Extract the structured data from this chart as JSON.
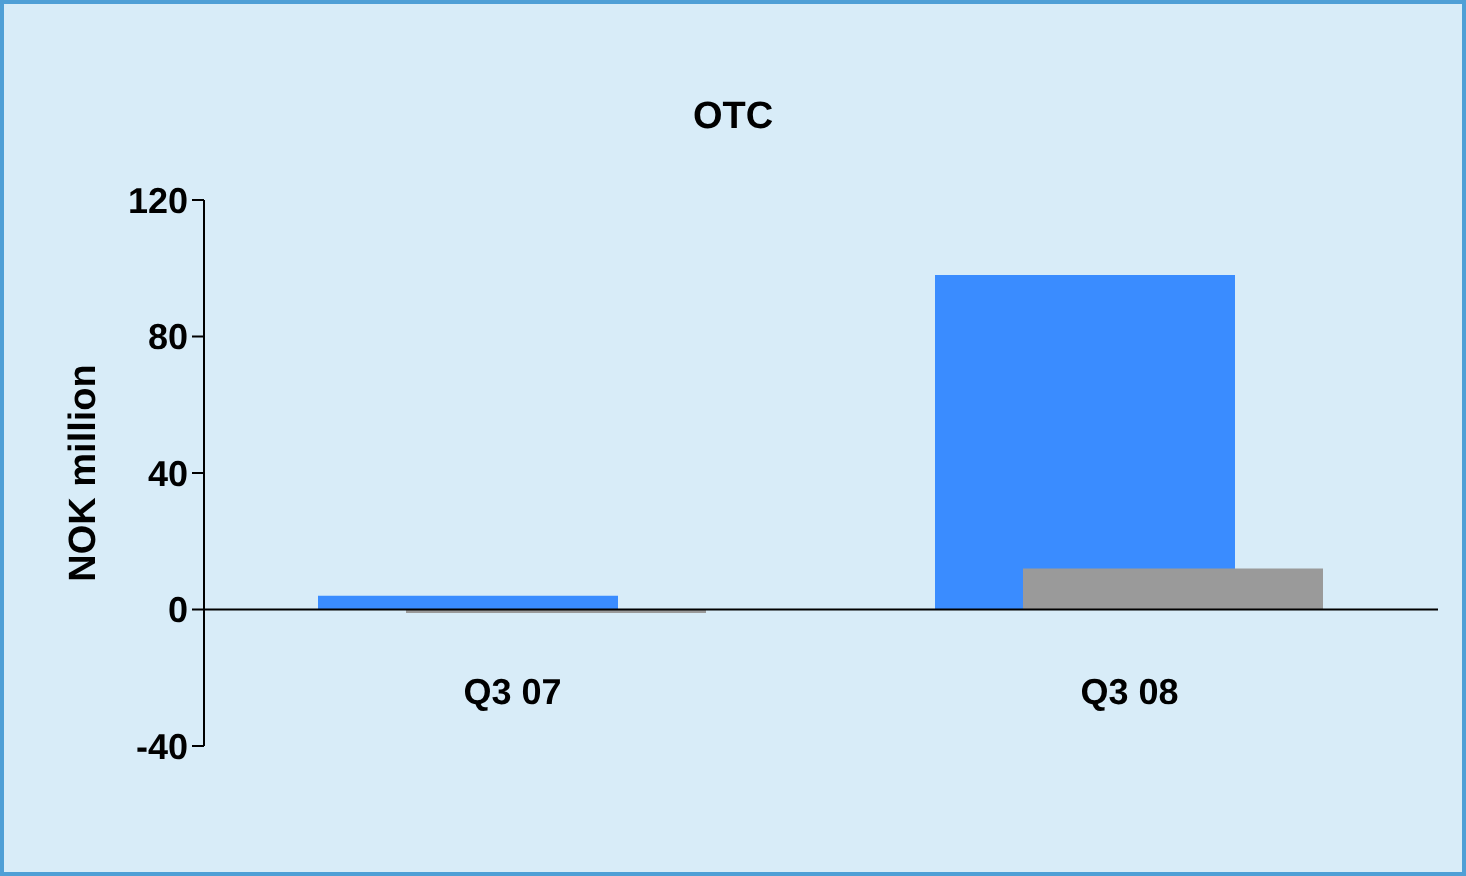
{
  "chart_data": {
    "type": "bar",
    "title": "OTC",
    "ylabel": "NOK million",
    "categories": [
      "Q3 07",
      "Q3 08"
    ],
    "series": [
      {
        "color": "#3a8cff",
        "values": [
          4,
          98
        ]
      },
      {
        "color": "#9a9a9a",
        "values": [
          -1,
          12
        ]
      }
    ],
    "ylim": [
      -40,
      120
    ],
    "yticks": [
      -40,
      0,
      40,
      80,
      120
    ],
    "grid": false,
    "legend": false
  }
}
